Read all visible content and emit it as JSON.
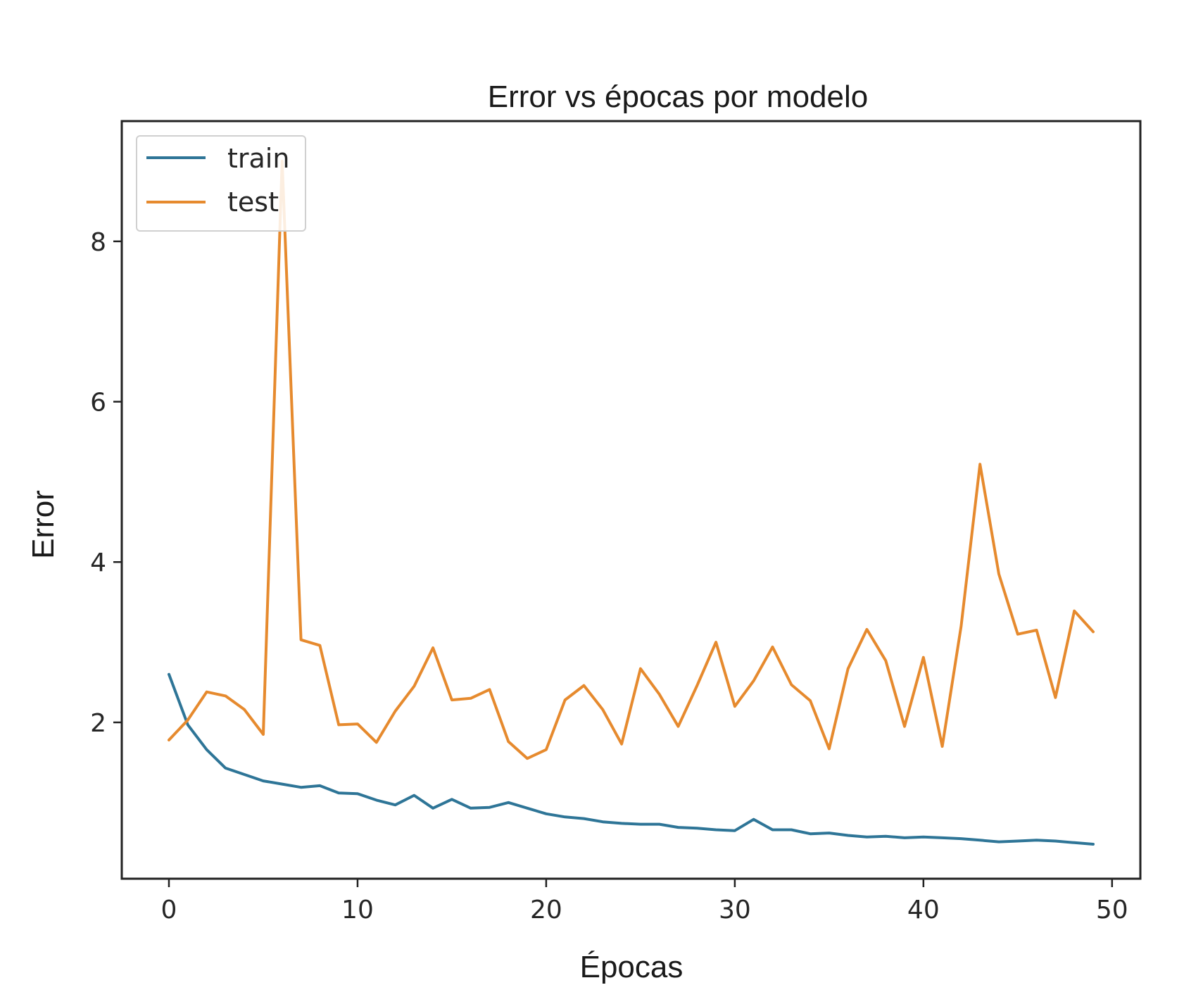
{
  "chart_data": {
    "type": "line",
    "title": "Error vs épocas por modelo",
    "xlabel": "Épocas",
    "ylabel": "Error",
    "xlim": [
      -2.5,
      51.5
    ],
    "ylim": [
      0.05,
      9.5
    ],
    "xticks": [
      0,
      10,
      20,
      30,
      40,
      50
    ],
    "yticks": [
      2,
      4,
      6,
      8
    ],
    "grid": false,
    "legend": "top-left",
    "x": [
      0,
      1,
      2,
      3,
      4,
      5,
      6,
      7,
      8,
      9,
      10,
      11,
      12,
      13,
      14,
      15,
      16,
      17,
      18,
      19,
      20,
      21,
      22,
      23,
      24,
      25,
      26,
      27,
      28,
      29,
      30,
      31,
      32,
      33,
      34,
      35,
      36,
      37,
      38,
      39,
      40,
      41,
      42,
      43,
      44,
      45,
      46,
      47,
      48,
      49
    ],
    "series": [
      {
        "name": "train",
        "color": "#2e7597",
        "values": [
          2.6,
          1.97,
          1.66,
          1.43,
          1.35,
          1.27,
          1.23,
          1.19,
          1.21,
          1.12,
          1.11,
          1.03,
          0.97,
          1.09,
          0.93,
          1.04,
          0.93,
          0.94,
          1.0,
          0.93,
          0.86,
          0.82,
          0.8,
          0.76,
          0.74,
          0.73,
          0.73,
          0.69,
          0.68,
          0.66,
          0.65,
          0.79,
          0.66,
          0.66,
          0.61,
          0.62,
          0.59,
          0.57,
          0.58,
          0.56,
          0.57,
          0.56,
          0.55,
          0.53,
          0.51,
          0.52,
          0.53,
          0.52,
          0.5,
          0.48
        ]
      },
      {
        "name": "test",
        "color": "#e68a2e",
        "values": [
          1.78,
          2.03,
          2.38,
          2.33,
          2.16,
          1.85,
          9.0,
          3.03,
          2.96,
          1.97,
          1.98,
          1.75,
          2.14,
          2.45,
          2.93,
          2.28,
          2.3,
          2.41,
          1.76,
          1.55,
          1.66,
          2.28,
          2.46,
          2.16,
          1.73,
          2.67,
          2.35,
          1.95,
          2.46,
          3.0,
          2.2,
          2.52,
          2.94,
          2.47,
          2.27,
          1.67,
          2.67,
          3.16,
          2.77,
          1.95,
          2.81,
          1.7,
          3.2,
          5.22,
          3.85,
          3.1,
          3.15,
          2.31,
          3.39,
          3.13
        ]
      }
    ]
  }
}
